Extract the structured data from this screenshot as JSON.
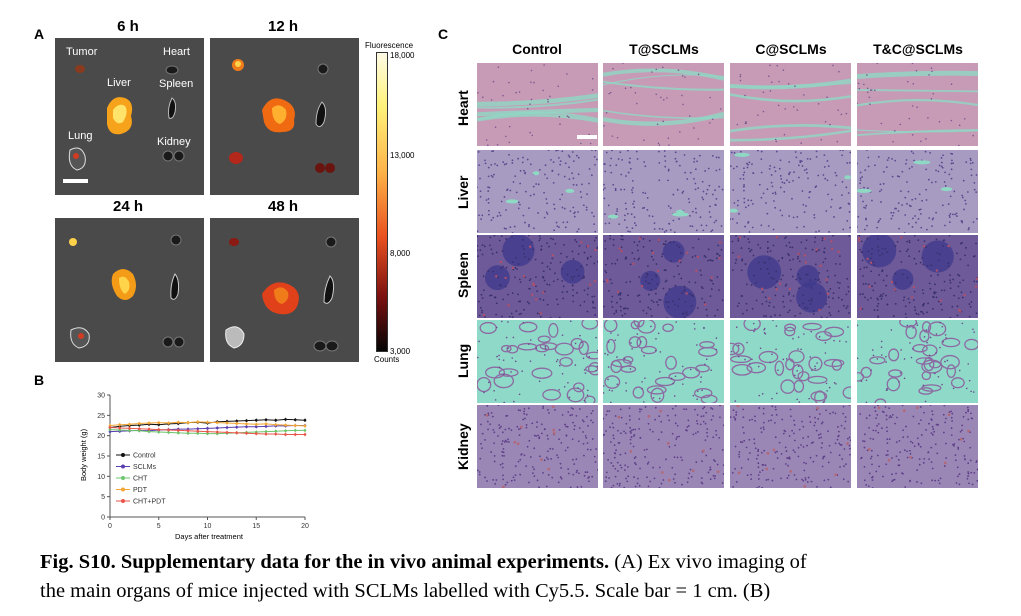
{
  "panel_a": {
    "letter": "A",
    "time_labels": [
      "6 h",
      "12 h",
      "24 h",
      "48 h"
    ],
    "organ_labels": [
      "Tumor",
      "Heart",
      "Liver",
      "Spleen",
      "Lung",
      "Kidney"
    ],
    "colorbar": {
      "title": "Fluorescence",
      "ticks": [
        "18,000",
        "13,000",
        "8,000",
        "3,000"
      ],
      "unit": "Counts"
    }
  },
  "panel_b": {
    "letter": "B",
    "chart_data": {
      "type": "line",
      "x": [
        0,
        1,
        2,
        3,
        4,
        5,
        6,
        7,
        8,
        9,
        10,
        11,
        12,
        13,
        14,
        15,
        16,
        17,
        18,
        19,
        20
      ],
      "xlabel": "Days after treatment",
      "ylabel": "Body weight (g)",
      "xlim": [
        0,
        20
      ],
      "ylim": [
        0,
        30
      ],
      "xticks": [
        "0",
        "5",
        "10",
        "15",
        "20"
      ],
      "yticks": [
        "0",
        "5",
        "10",
        "15",
        "20",
        "25",
        "30"
      ],
      "grid": false,
      "legend_position": "bottom-left",
      "series": [
        {
          "name": "Control",
          "color": "#111111",
          "marker": "square",
          "values": [
            22.0,
            22.3,
            22.5,
            22.6,
            22.8,
            22.7,
            22.9,
            23.0,
            23.2,
            23.3,
            23.1,
            23.4,
            23.5,
            23.6,
            23.7,
            23.8,
            23.9,
            23.8,
            24.0,
            23.9,
            23.8
          ]
        },
        {
          "name": "SCLMs",
          "color": "#5a3fb0",
          "marker": "diamond",
          "values": [
            21.0,
            21.1,
            21.2,
            21.3,
            21.2,
            21.4,
            21.5,
            21.6,
            21.6,
            21.7,
            21.8,
            21.9,
            22.0,
            22.1,
            22.2,
            22.2,
            22.3,
            22.4,
            22.4,
            22.5,
            22.5
          ]
        },
        {
          "name": "CHT",
          "color": "#6cc46c",
          "marker": "circle",
          "values": [
            21.5,
            21.4,
            21.3,
            21.2,
            21.0,
            20.9,
            20.8,
            20.7,
            20.6,
            20.6,
            20.5,
            20.5,
            20.6,
            20.7,
            20.8,
            20.9,
            21.0,
            21.1,
            21.2,
            21.3,
            21.3
          ]
        },
        {
          "name": "PDT",
          "color": "#f2a633",
          "marker": "triangle",
          "values": [
            22.5,
            22.7,
            22.8,
            23.0,
            23.1,
            23.2,
            23.1,
            23.3,
            23.2,
            23.4,
            23.3,
            23.2,
            23.1,
            23.0,
            22.9,
            22.8,
            22.9,
            22.7,
            22.6,
            22.5,
            22.4
          ]
        },
        {
          "name": "CHT+PDT",
          "color": "#e8564a",
          "marker": "circle",
          "values": [
            22.0,
            21.9,
            21.8,
            21.7,
            21.6,
            21.5,
            21.4,
            21.3,
            21.2,
            21.1,
            21.0,
            20.9,
            20.8,
            20.7,
            20.6,
            20.5,
            20.4,
            20.4,
            20.3,
            20.3,
            20.3
          ]
        }
      ]
    }
  },
  "panel_c": {
    "letter": "C",
    "columns": [
      "Control",
      "T@SCLMs",
      "C@SCLMs",
      "T&C@SCLMs"
    ],
    "rows": [
      "Heart",
      "Liver",
      "Spleen",
      "Lung",
      "Kidney"
    ]
  },
  "caption": {
    "bold": "Fig. S10. Supplementary data for the in vivo animal experiments.",
    "line1_rest": " (A) Ex vivo imaging of",
    "line2": "the main organs of mice injected with SCLMs labelled with Cy5.5. Scale bar = 1 cm. (B)"
  }
}
